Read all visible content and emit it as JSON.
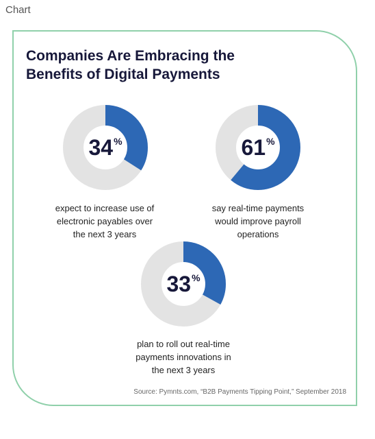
{
  "page_label": "Chart",
  "title_line1": "Companies Are Embracing the",
  "title_line2": "Benefits of Digital Payments",
  "colors": {
    "fill": "#2d68b5",
    "track": "#e3e3e3",
    "border": "#8fd0aa",
    "text": "#17183a"
  },
  "chart_data": {
    "type": "pie",
    "title": "Companies Are Embracing the Benefits of Digital Payments",
    "items": [
      {
        "value": 34,
        "unit": "%",
        "caption": [
          "expect to increase use of",
          "electronic payables over",
          "the next 3 years"
        ]
      },
      {
        "value": 61,
        "unit": "%",
        "caption": [
          "say real-time payments",
          "would improve payroll",
          "operations"
        ]
      },
      {
        "value": 33,
        "unit": "%",
        "caption": [
          "plan to roll out real-time",
          "payments innovations in",
          "the next 3 years"
        ]
      }
    ]
  },
  "source": "Source: Pymnts.com, “B2B Payments Tipping Point,” September 2018"
}
